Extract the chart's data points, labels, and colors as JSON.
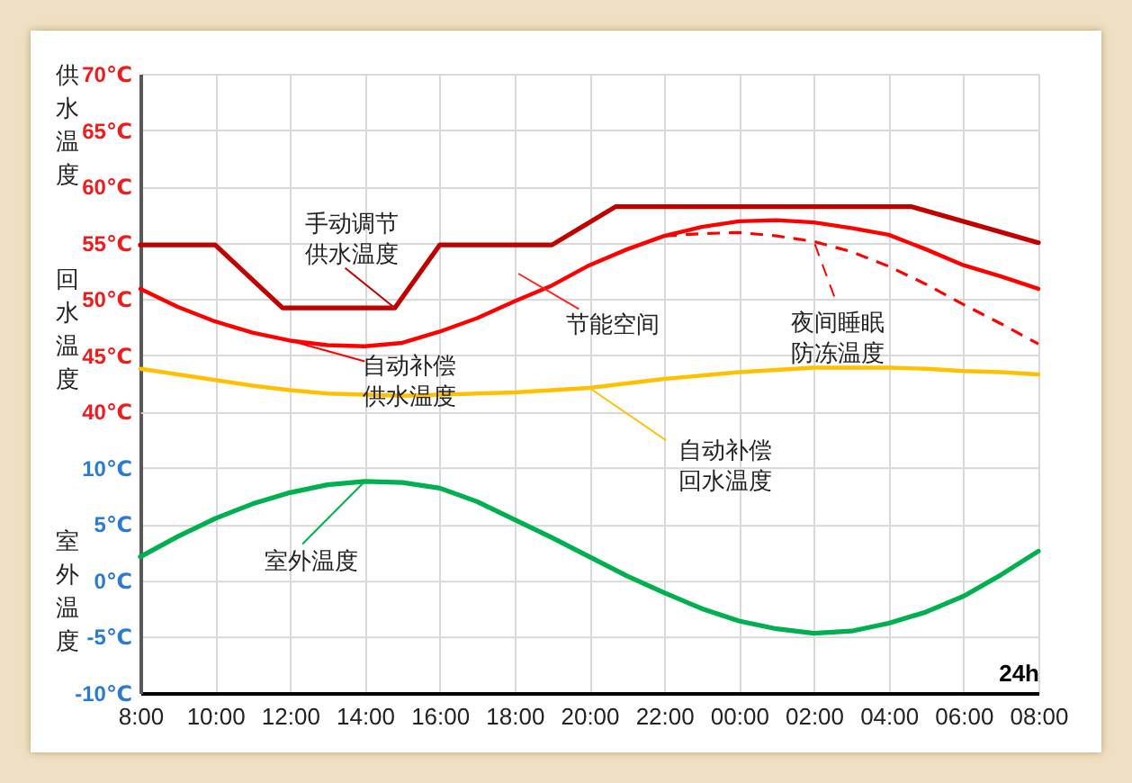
{
  "chart_data": [
    {
      "type": "line",
      "x": [
        "--01-01T08:00",
        "--01-01T09:00",
        "--01-01T10:00",
        "--01-01T11:00",
        "--01-01T12:00",
        "--01-01T13:00",
        "--01-01T14:00",
        "--01-01T15:00",
        "--01-01T16:00",
        "--01-01T17:00",
        "--01-01T18:00",
        "--01-01T19:00",
        "--01-01T20:00",
        "--01-01T21:00",
        "--01-01T22:00",
        "--01-01T23:00",
        "--01-02T00:00",
        "--01-02T01:00",
        "--01-02T02:00",
        "--01-02T03:00",
        "--01-02T04:00",
        "--01-02T05:00",
        "--01-02T06:00",
        "--01-02T07:00",
        "--01-02T08:00"
      ],
      "xlim": [
        "--01-01T08:00",
        "--01-02T08:00"
      ],
      "xticks": [
        {
          "value": "--01-01T08:00",
          "label": null
        },
        {
          "value": "--01-01T10:00",
          "label": null
        },
        {
          "value": "--01-01T12:00",
          "label": null
        },
        {
          "value": "--01-01T14:00",
          "label": null
        },
        {
          "value": "--01-01T16:00",
          "label": null
        },
        {
          "value": "--01-01T18:00",
          "label": null
        },
        {
          "value": "--01-01T20:00",
          "label": null
        },
        {
          "value": "--01-01T22:00",
          "label": null
        },
        {
          "value": "--01-02T00:00",
          "label": null
        },
        {
          "value": "--01-02T02:00",
          "label": null
        },
        {
          "value": "--01-02T04:00",
          "label": null
        },
        {
          "value": "--01-02T06:00",
          "label": null
        },
        {
          "value": "--01-02T08:00",
          "label": null
        }
      ],
      "ylim": [
        40,
        70
      ],
      "yticks": [
        {
          "value": 40,
          "label": "40℃"
        },
        {
          "value": 45,
          "label": "45℃"
        },
        {
          "value": 50,
          "label": "50℃"
        },
        {
          "value": 55,
          "label": "55℃"
        },
        {
          "value": 60,
          "label": "60℃"
        },
        {
          "value": 65,
          "label": "65℃"
        },
        {
          "value": 70,
          "label": "70℃"
        }
      ],
      "grid": true,
      "tick_labels": "y",
      "series": [
        {
          "name": "手动调节供水温度",
          "color": "#c00000",
          "x": [
            "--01-01T08:00",
            "--01-01T10:00",
            "--01-01T11:48",
            "--01-01T14:48",
            "--01-01T16:00",
            "--01-01T19:00",
            "--01-01T20:42",
            "--01-02T04:36",
            "--01-02T08:00"
          ],
          "values": [
            54.8,
            54.8,
            49.2,
            49.2,
            54.8,
            54.8,
            58.2,
            58.2,
            55.0
          ]
        },
        {
          "name": "自动补偿供水温度",
          "color": "#ff0000",
          "values": [
            50.9,
            49.3,
            48.0,
            47.0,
            46.3,
            45.9,
            45.8,
            46.1,
            47.1,
            48.3,
            49.8,
            51.2,
            53.0,
            54.4,
            55.6,
            56.4,
            56.9,
            57.0,
            56.8,
            56.3,
            55.7,
            54.4,
            53.0,
            52.0,
            50.9
          ]
        },
        {
          "name": "夜间睡眠防冻温度",
          "color": "#ff0000",
          "line_style": "dashed",
          "x": [
            "--01-01T22:00",
            "--01-01T23:00",
            "--01-02T00:00",
            "--01-02T01:00",
            "--01-02T02:00",
            "--01-02T03:00",
            "--01-02T04:00",
            "--01-02T05:00",
            "--01-02T06:00",
            "--01-02T07:00",
            "--01-02T08:00"
          ],
          "values": [
            55.6,
            55.8,
            55.9,
            55.6,
            55.1,
            54.2,
            52.9,
            51.3,
            49.5,
            47.8,
            46.0
          ]
        },
        {
          "name": "自动补偿回水温度",
          "color": "#ffc000",
          "values": [
            43.8,
            43.3,
            42.8,
            42.3,
            41.9,
            41.6,
            41.5,
            41.4,
            41.5,
            41.6,
            41.7,
            41.9,
            42.1,
            42.5,
            42.9,
            43.2,
            43.5,
            43.7,
            43.9,
            43.9,
            43.9,
            43.8,
            43.6,
            43.5,
            43.3
          ]
        }
      ],
      "annotations": [
        "供水温度",
        "回水温度",
        "节能空间"
      ]
    },
    {
      "type": "line",
      "xlabel": "24h",
      "x": [
        "--01-01T08:00",
        "--01-01T09:00",
        "--01-01T10:00",
        "--01-01T11:00",
        "--01-01T12:00",
        "--01-01T13:00",
        "--01-01T14:00",
        "--01-01T15:00",
        "--01-01T16:00",
        "--01-01T17:00",
        "--01-01T18:00",
        "--01-01T19:00",
        "--01-01T20:00",
        "--01-01T21:00",
        "--01-01T22:00",
        "--01-01T23:00",
        "--01-02T00:00",
        "--01-02T01:00",
        "--01-02T02:00",
        "--01-02T03:00",
        "--01-02T04:00",
        "--01-02T05:00",
        "--01-02T06:00",
        "--01-02T07:00",
        "--01-02T08:00"
      ],
      "xlim": [
        "--01-01T08:00",
        "--01-02T08:00"
      ],
      "xticks": [
        {
          "value": "--01-01T08:00",
          "label": "8:00"
        },
        {
          "value": "--01-01T10:00",
          "label": "10:00"
        },
        {
          "value": "--01-01T12:00",
          "label": "12:00"
        },
        {
          "value": "--01-01T14:00",
          "label": "14:00"
        },
        {
          "value": "--01-01T16:00",
          "label": "16:00"
        },
        {
          "value": "--01-01T18:00",
          "label": "18:00"
        },
        {
          "value": "--01-01T20:00",
          "label": "20:00"
        },
        {
          "value": "--01-01T22:00",
          "label": "22:00"
        },
        {
          "value": "--01-02T00:00",
          "label": "00:00"
        },
        {
          "value": "--01-02T02:00",
          "label": "02:00"
        },
        {
          "value": "--01-02T04:00",
          "label": "04:00"
        },
        {
          "value": "--01-02T06:00",
          "label": "06:00"
        },
        {
          "value": "--01-02T08:00",
          "label": "08:00"
        }
      ],
      "ylim": [
        -10,
        15
      ],
      "yticks": [
        {
          "value": -10,
          "label": "-10℃"
        },
        {
          "value": -5,
          "label": "-5℃"
        },
        {
          "value": 0,
          "label": "0℃"
        },
        {
          "value": 5,
          "label": "5℃"
        },
        {
          "value": 10,
          "label": "10℃"
        }
      ],
      "grid": true,
      "series": [
        {
          "name": "室外温度",
          "color": "#00b050",
          "values": [
            2.1,
            3.9,
            5.5,
            6.8,
            7.8,
            8.5,
            8.8,
            8.7,
            8.2,
            7.0,
            5.4,
            3.8,
            2.1,
            0.4,
            -1.1,
            -2.5,
            -3.6,
            -4.3,
            -4.7,
            -4.5,
            -3.8,
            -2.8,
            -1.4,
            0.5,
            2.6
          ]
        }
      ],
      "annotations": [
        "室外温度"
      ]
    }
  ]
}
